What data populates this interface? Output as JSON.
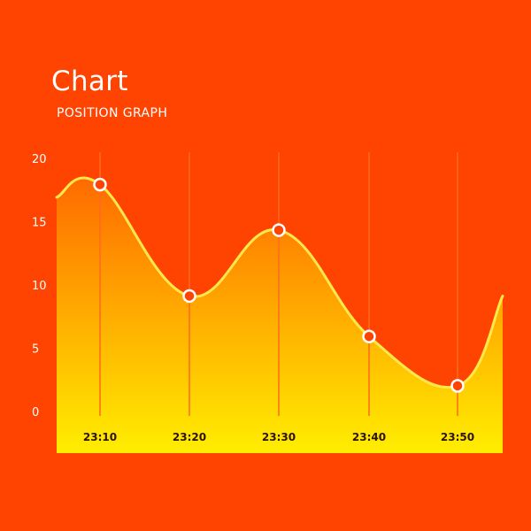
{
  "colors": {
    "background": "#ff4300",
    "line": "#ffe94a",
    "area_top": "#ff6a00",
    "area_bottom": "#ffee00",
    "guide_line": "#ff6a1e",
    "marker_fill": "#ff4300",
    "marker_stroke": "#ffffff"
  },
  "chart_data": {
    "type": "area",
    "title": "Chart",
    "subtitle": "POSITION GRAPH",
    "x": [
      "23:10",
      "23:20",
      "23:30",
      "23:40",
      "23:50"
    ],
    "points": [
      {
        "x": "23:10",
        "y": 18
      },
      {
        "x": "23:20",
        "y": 9.2
      },
      {
        "x": "23:30",
        "y": 14.4
      },
      {
        "x": "23:40",
        "y": 6
      },
      {
        "x": "23:50",
        "y": 2.1
      }
    ],
    "line_start_y": 17,
    "line_end_y": 9.2,
    "yticks": [
      0,
      5,
      10,
      15,
      20
    ],
    "ylim": [
      0,
      20
    ],
    "grid": "vertical-lines-at-x-ticks",
    "legend": "none"
  }
}
